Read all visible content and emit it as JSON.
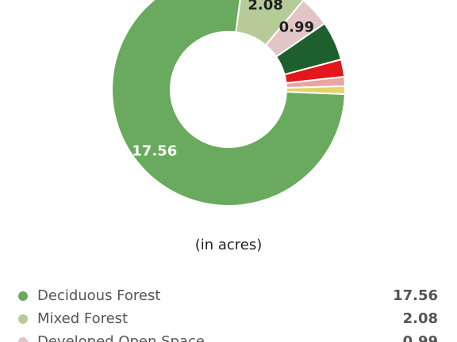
{
  "chart_data": {
    "type": "pie",
    "donut": true,
    "subtitle": "(in acres)",
    "categories": [
      "Deciduous Forest",
      "Mixed Forest",
      "Developed Open Space",
      null,
      null,
      null,
      null
    ],
    "values": [
      17.56,
      2.08,
      0.99,
      1.25,
      0.55,
      0.3,
      0.25
    ],
    "colors": [
      "#6aaa5e",
      "#b6cb98",
      "#e2c6c6",
      "#1e5f2e",
      "#e3161b",
      "#e7a6a1",
      "#e6d26a"
    ],
    "data_labels": [
      true,
      true,
      true,
      false,
      false,
      false,
      false
    ],
    "data_label_colors": [
      "#ffffff",
      "#222222",
      "#222222",
      null,
      null,
      null,
      null
    ]
  }
}
